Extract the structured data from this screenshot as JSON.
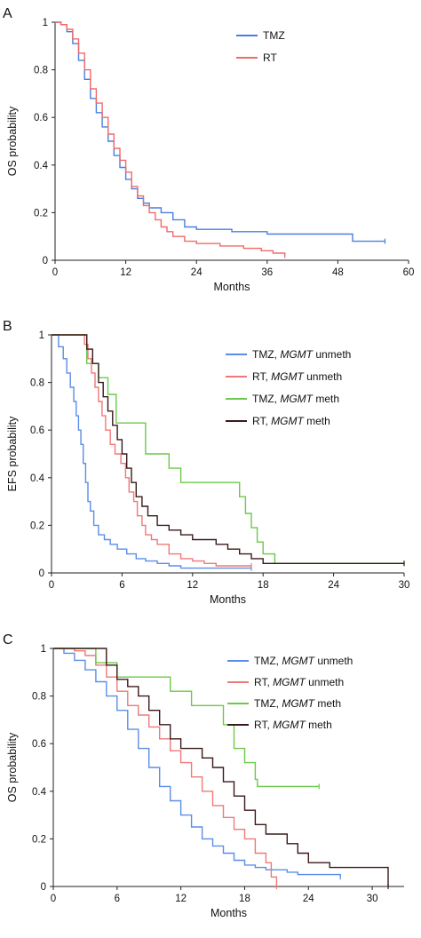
{
  "chart_data": [
    {
      "panel_label": "A",
      "type": "line",
      "step": true,
      "xlabel": "Months",
      "ylabel": "OS probability",
      "xlim": [
        0,
        60
      ],
      "ylim": [
        0,
        1
      ],
      "xticks": [
        "0",
        "12",
        "24",
        "36",
        "48",
        "60"
      ],
      "yticks": [
        "0",
        "0.2",
        "0.4",
        "0.6",
        "0.8",
        "1"
      ],
      "legend_placement": "top-right",
      "series": [
        {
          "name": "TMZ",
          "color": "#4a7fe0",
          "points": [
            [
              0,
              1
            ],
            [
              1,
              0.99
            ],
            [
              2,
              0.96
            ],
            [
              3,
              0.91
            ],
            [
              4,
              0.84
            ],
            [
              5,
              0.76
            ],
            [
              6,
              0.68
            ],
            [
              7,
              0.62
            ],
            [
              8,
              0.56
            ],
            [
              9,
              0.5
            ],
            [
              10,
              0.44
            ],
            [
              11,
              0.39
            ],
            [
              12,
              0.34
            ],
            [
              13,
              0.3
            ],
            [
              14,
              0.26
            ],
            [
              15,
              0.24
            ],
            [
              16,
              0.22
            ],
            [
              18,
              0.2
            ],
            [
              20,
              0.17
            ],
            [
              22,
              0.14
            ],
            [
              24,
              0.13
            ],
            [
              30,
              0.12
            ],
            [
              36,
              0.11
            ],
            [
              44,
              0.11
            ],
            [
              50,
              0.11
            ],
            [
              50.5,
              0.08
            ],
            [
              56,
              0.08
            ]
          ]
        },
        {
          "name": "RT",
          "color": "#f26a6a",
          "points": [
            [
              0,
              1
            ],
            [
              1,
              0.99
            ],
            [
              2,
              0.97
            ],
            [
              3,
              0.93
            ],
            [
              4,
              0.87
            ],
            [
              5,
              0.8
            ],
            [
              6,
              0.72
            ],
            [
              7,
              0.66
            ],
            [
              8,
              0.6
            ],
            [
              9,
              0.53
            ],
            [
              10,
              0.47
            ],
            [
              11,
              0.42
            ],
            [
              12,
              0.37
            ],
            [
              13,
              0.31
            ],
            [
              14,
              0.27
            ],
            [
              15,
              0.23
            ],
            [
              16,
              0.2
            ],
            [
              17,
              0.17
            ],
            [
              18,
              0.14
            ],
            [
              19,
              0.12
            ],
            [
              20,
              0.1
            ],
            [
              22,
              0.08
            ],
            [
              24,
              0.07
            ],
            [
              28,
              0.06
            ],
            [
              32,
              0.05
            ],
            [
              35,
              0.04
            ],
            [
              37,
              0.03
            ],
            [
              39,
              0.02
            ]
          ]
        }
      ]
    },
    {
      "panel_label": "B",
      "type": "line",
      "step": true,
      "xlabel": "Months",
      "ylabel": "EFS probability",
      "xlim": [
        0,
        30
      ],
      "ylim": [
        0,
        1
      ],
      "xticks": [
        "0",
        "6",
        "12",
        "18",
        "24",
        "30"
      ],
      "yticks": [
        "0",
        "0.2",
        "0.4",
        "0.6",
        "0.8",
        "1"
      ],
      "legend_placement": "top-right",
      "series": [
        {
          "name": "TMZ, MGMT unmeth",
          "name_prefix": "TMZ, ",
          "name_italic": "MGMT",
          "name_suffix": " unmeth",
          "color": "#5b8de8",
          "points": [
            [
              0,
              1
            ],
            [
              0.6,
              0.95
            ],
            [
              1,
              0.9
            ],
            [
              1.3,
              0.84
            ],
            [
              1.6,
              0.78
            ],
            [
              1.9,
              0.72
            ],
            [
              2.1,
              0.66
            ],
            [
              2.3,
              0.6
            ],
            [
              2.5,
              0.54
            ],
            [
              2.7,
              0.46
            ],
            [
              2.9,
              0.38
            ],
            [
              3.1,
              0.3
            ],
            [
              3.3,
              0.26
            ],
            [
              3.6,
              0.2
            ],
            [
              4,
              0.16
            ],
            [
              4.5,
              0.14
            ],
            [
              5,
              0.12
            ],
            [
              5.6,
              0.1
            ],
            [
              6.4,
              0.08
            ],
            [
              7.2,
              0.06
            ],
            [
              8,
              0.05
            ],
            [
              9,
              0.04
            ],
            [
              10,
              0.03
            ],
            [
              11,
              0.02
            ],
            [
              14,
              0.02
            ],
            [
              17,
              0.02
            ]
          ]
        },
        {
          "name": "RT, MGMT unmeth",
          "name_prefix": "RT, ",
          "name_italic": "MGMT",
          "name_suffix": " unmeth",
          "color": "#f07878",
          "points": [
            [
              0,
              1
            ],
            [
              2.3,
              1
            ],
            [
              2.8,
              0.96
            ],
            [
              3.1,
              0.9
            ],
            [
              3.4,
              0.84
            ],
            [
              3.7,
              0.78
            ],
            [
              4,
              0.72
            ],
            [
              4.3,
              0.66
            ],
            [
              4.6,
              0.6
            ],
            [
              5,
              0.54
            ],
            [
              5.4,
              0.5
            ],
            [
              5.9,
              0.46
            ],
            [
              6.3,
              0.4
            ],
            [
              6.6,
              0.34
            ],
            [
              7,
              0.3
            ],
            [
              7.3,
              0.24
            ],
            [
              7.7,
              0.2
            ],
            [
              8,
              0.16
            ],
            [
              8.5,
              0.14
            ],
            [
              9,
              0.12
            ],
            [
              10,
              0.08
            ],
            [
              11,
              0.06
            ],
            [
              12,
              0.05
            ],
            [
              13,
              0.04
            ],
            [
              14,
              0.03
            ],
            [
              17,
              0.03
            ]
          ]
        },
        {
          "name": "TMZ, MGMT meth",
          "name_prefix": "TMZ, ",
          "name_italic": "MGMT",
          "name_suffix": " meth",
          "color": "#6cc94a",
          "points": [
            [
              0,
              1
            ],
            [
              2.5,
              1
            ],
            [
              3,
              0.88
            ],
            [
              4,
              0.82
            ],
            [
              4.8,
              0.75
            ],
            [
              5.5,
              0.63
            ],
            [
              7,
              0.63
            ],
            [
              8,
              0.5
            ],
            [
              10,
              0.44
            ],
            [
              11,
              0.38
            ],
            [
              15,
              0.38
            ],
            [
              16,
              0.32
            ],
            [
              16.5,
              0.25
            ],
            [
              17,
              0.19
            ],
            [
              17.5,
              0.13
            ],
            [
              18,
              0.08
            ],
            [
              19,
              0.06
            ],
            [
              19,
              0.04
            ],
            [
              30,
              0.04
            ]
          ]
        },
        {
          "name": "RT, MGMT meth",
          "name_prefix": "RT, ",
          "name_italic": "MGMT",
          "name_suffix": " meth",
          "color": "#3a1a1a",
          "points": [
            [
              0,
              1
            ],
            [
              2.6,
              1
            ],
            [
              3,
              0.94
            ],
            [
              3.5,
              0.88
            ],
            [
              4,
              0.8
            ],
            [
              4.4,
              0.74
            ],
            [
              4.8,
              0.68
            ],
            [
              5.2,
              0.62
            ],
            [
              5.6,
              0.56
            ],
            [
              6,
              0.5
            ],
            [
              6.4,
              0.44
            ],
            [
              6.8,
              0.38
            ],
            [
              7.2,
              0.32
            ],
            [
              7.7,
              0.28
            ],
            [
              8.2,
              0.24
            ],
            [
              9,
              0.2
            ],
            [
              10,
              0.18
            ],
            [
              11,
              0.16
            ],
            [
              12,
              0.14
            ],
            [
              14,
              0.12
            ],
            [
              15,
              0.1
            ],
            [
              16,
              0.08
            ],
            [
              17,
              0.06
            ],
            [
              18,
              0.04
            ],
            [
              30,
              0.04
            ]
          ]
        }
      ]
    },
    {
      "panel_label": "C",
      "type": "line",
      "step": true,
      "xlabel": "Months",
      "ylabel": "OS probability",
      "xlim": [
        0,
        33
      ],
      "ylim": [
        0,
        1
      ],
      "xticks": [
        "0",
        "6",
        "12",
        "18",
        "24",
        "30"
      ],
      "xtick_values": [
        0,
        6,
        12,
        18,
        24,
        30
      ],
      "yticks": [
        "0",
        "0.2",
        "0.4",
        "0.6",
        "0.8",
        "1"
      ],
      "legend_placement": "top-right",
      "series": [
        {
          "name": "TMZ, MGMT unmeth",
          "name_prefix": "TMZ, ",
          "name_italic": "MGMT",
          "name_suffix": " unmeth",
          "color": "#5b8de8",
          "points": [
            [
              0,
              1
            ],
            [
              1,
              0.98
            ],
            [
              2,
              0.95
            ],
            [
              3,
              0.91
            ],
            [
              4,
              0.86
            ],
            [
              5,
              0.8
            ],
            [
              6,
              0.74
            ],
            [
              7,
              0.66
            ],
            [
              8,
              0.58
            ],
            [
              9,
              0.5
            ],
            [
              10,
              0.42
            ],
            [
              11,
              0.36
            ],
            [
              12,
              0.3
            ],
            [
              13,
              0.25
            ],
            [
              14,
              0.2
            ],
            [
              15,
              0.17
            ],
            [
              16,
              0.14
            ],
            [
              17,
              0.11
            ],
            [
              18,
              0.09
            ],
            [
              19,
              0.08
            ],
            [
              20,
              0.07
            ],
            [
              22,
              0.06
            ],
            [
              23,
              0.05
            ],
            [
              25,
              0.05
            ],
            [
              27,
              0.04
            ]
          ]
        },
        {
          "name": "RT, MGMT unmeth",
          "name_prefix": "RT, ",
          "name_italic": "MGMT",
          "name_suffix": " unmeth",
          "color": "#f07878",
          "points": [
            [
              0,
              1
            ],
            [
              2,
              0.99
            ],
            [
              3,
              0.97
            ],
            [
              4,
              0.93
            ],
            [
              5,
              0.88
            ],
            [
              6,
              0.82
            ],
            [
              7,
              0.76
            ],
            [
              8,
              0.72
            ],
            [
              9,
              0.67
            ],
            [
              10,
              0.62
            ],
            [
              11,
              0.57
            ],
            [
              12,
              0.52
            ],
            [
              13,
              0.46
            ],
            [
              14,
              0.4
            ],
            [
              15,
              0.34
            ],
            [
              16,
              0.29
            ],
            [
              17,
              0.24
            ],
            [
              18,
              0.2
            ],
            [
              19,
              0.14
            ],
            [
              20,
              0.1
            ],
            [
              20.5,
              0.04
            ],
            [
              21,
              0
            ]
          ]
        },
        {
          "name": "TMZ, MGMT meth",
          "name_prefix": "TMZ, ",
          "name_italic": "MGMT",
          "name_suffix": " meth",
          "color": "#6cc94a",
          "points": [
            [
              0,
              1
            ],
            [
              3,
              1
            ],
            [
              4,
              0.94
            ],
            [
              6,
              0.88
            ],
            [
              10,
              0.88
            ],
            [
              11,
              0.82
            ],
            [
              13,
              0.76
            ],
            [
              15,
              0.76
            ],
            [
              16,
              0.68
            ],
            [
              17,
              0.58
            ],
            [
              18,
              0.52
            ],
            [
              19,
              0.45
            ],
            [
              19.2,
              0.42
            ],
            [
              25,
              0.42
            ]
          ]
        },
        {
          "name": "RT, MGMT meth",
          "name_prefix": "RT, ",
          "name_italic": "MGMT",
          "name_suffix": " meth",
          "color": "#3a1a1a",
          "points": [
            [
              0,
              1
            ],
            [
              4,
              1
            ],
            [
              5,
              0.93
            ],
            [
              6,
              0.87
            ],
            [
              7,
              0.84
            ],
            [
              8,
              0.8
            ],
            [
              9,
              0.74
            ],
            [
              10,
              0.68
            ],
            [
              11,
              0.62
            ],
            [
              12,
              0.58
            ],
            [
              14,
              0.54
            ],
            [
              15,
              0.5
            ],
            [
              16,
              0.44
            ],
            [
              17,
              0.38
            ],
            [
              18,
              0.32
            ],
            [
              19,
              0.26
            ],
            [
              20,
              0.22
            ],
            [
              22,
              0.18
            ],
            [
              23,
              0.14
            ],
            [
              24,
              0.1
            ],
            [
              26,
              0.08
            ],
            [
              30,
              0.08
            ],
            [
              31,
              0.08
            ],
            [
              31.5,
              0
            ]
          ]
        }
      ]
    }
  ]
}
